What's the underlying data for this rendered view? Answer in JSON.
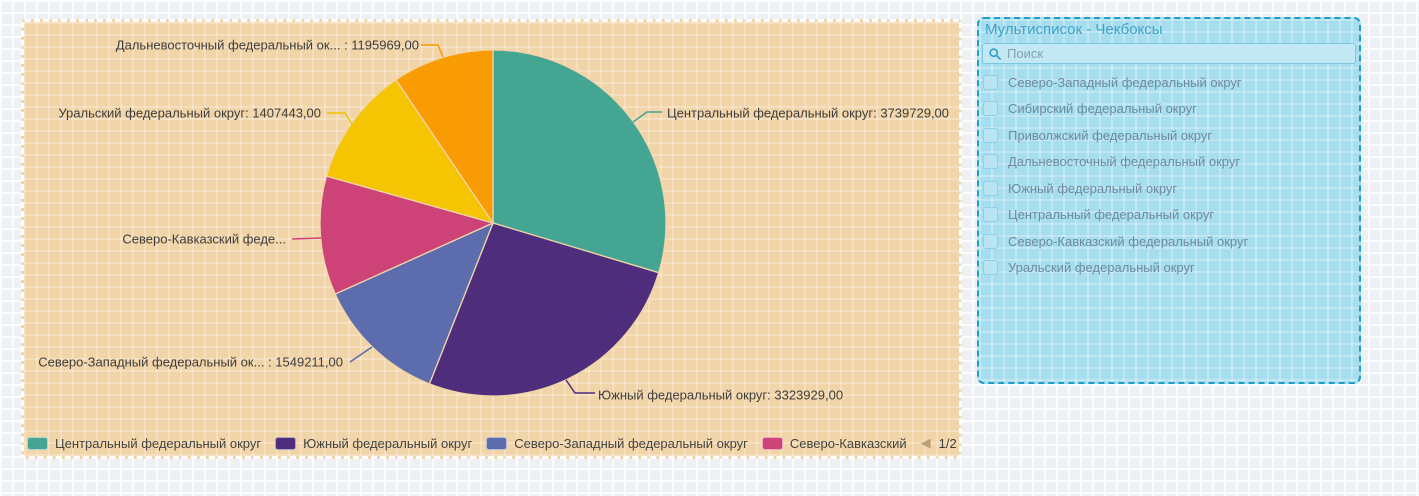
{
  "chart_widget": {
    "legend": {
      "items": [
        {
          "label": "Центральный федеральный округ",
          "color": "#45A593"
        },
        {
          "label": "Южный федеральный округ",
          "color": "#4F2D7D"
        },
        {
          "label": "Северо-Западный федеральный округ",
          "color": "#5C6CAD"
        },
        {
          "label": "Северо-Кавказский",
          "color": "#CD4277"
        }
      ],
      "page_label": "1/2"
    }
  },
  "chart_data": {
    "type": "pie",
    "title": "",
    "legend_position": "bottom",
    "start_angle_deg": 0,
    "direction": "clockwise",
    "slices": [
      {
        "label": "Центральный федеральный округ",
        "value": 3739729,
        "display": "Центральный федеральный округ: 3739729,00",
        "color": "#45A593"
      },
      {
        "label": "Южный федеральный округ",
        "value": 3323929,
        "display": "Южный федеральный округ: 3323929,00",
        "color": "#4F2D7D"
      },
      {
        "label": "Северо-Западный федеральный округ",
        "value": 1549211,
        "display": "Северо-Западный федеральный ок... : 1549211,00",
        "color": "#5C6CAD"
      },
      {
        "label": "Северо-Кавказский федеральный округ",
        "value": 1400000,
        "value_note": "estimated from slice angle; value not shown on screen",
        "display": "Северо-Кавказский феде...",
        "color": "#CD4277"
      },
      {
        "label": "Уральский федеральный округ",
        "value": 1407443,
        "display": "Уральский федеральный округ: 1407443,00",
        "color": "#F5C402"
      },
      {
        "label": "Дальневосточный федеральный округ",
        "value": 1195969,
        "display": "Дальневосточный федеральный ок... : 1195969,00",
        "color": "#F99B03"
      }
    ]
  },
  "multilist": {
    "title": "Мультисписок - Чекбоксы",
    "search": {
      "placeholder": "Поиск"
    },
    "items": [
      {
        "label": "Северо-Западный федеральный округ",
        "checked": false
      },
      {
        "label": "Сибирский федеральный округ",
        "checked": false
      },
      {
        "label": "Приволжский федеральный округ",
        "checked": false
      },
      {
        "label": "Дальневосточный федеральный округ",
        "checked": false
      },
      {
        "label": "Южный федеральный округ",
        "checked": false
      },
      {
        "label": "Центральный федеральный округ",
        "checked": false
      },
      {
        "label": "Северо-Кавказский федеральный округ",
        "checked": false
      },
      {
        "label": "Уральский федеральный округ",
        "checked": false
      }
    ]
  },
  "colors": {
    "canvas_background": "#EEF1F4",
    "chart_panel_background": "#F1D4A8",
    "chart_selection_dash": "#FFFFFF",
    "multilist_background": "#A6DDEF",
    "multilist_border": "#1E9DC6",
    "multilist_title": "#43A3C8"
  }
}
